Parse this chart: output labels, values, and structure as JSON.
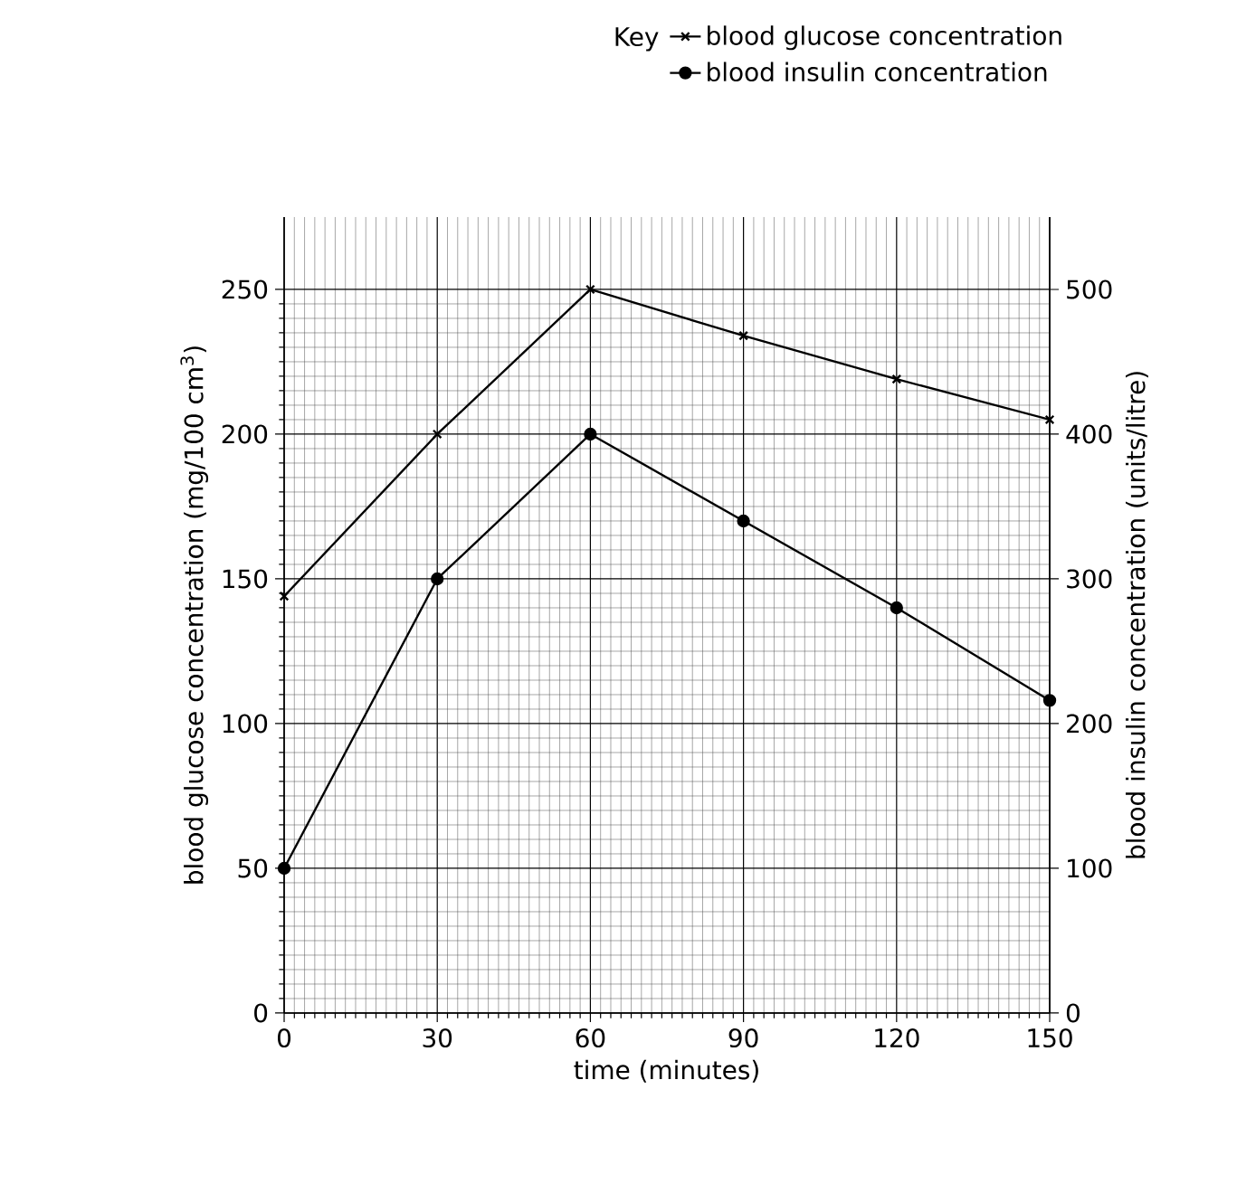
{
  "chart_data": {
    "type": "line",
    "xlabel": "time (minutes)",
    "ylabel": "blood glucose concentration (mg/100 cm$^{3}$)",
    "y2label": "blood insulin concentration (units/litre)",
    "legend_title": "Key",
    "x": [
      0,
      30,
      60,
      90,
      120,
      150
    ],
    "series": [
      {
        "name": "blood glucose concentration",
        "color": "#000000",
        "marker": "cross",
        "values": [
          144,
          200,
          250,
          234,
          219,
          205
        ]
      },
      {
        "name": "blood insulin concentration",
        "color": "#000000",
        "marker": "circle",
        "axis": "y2",
        "values": [
          100,
          300,
          400,
          340,
          280,
          216
        ]
      }
    ],
    "xlim": [
      0,
      150
    ],
    "xticks": [
      0,
      30,
      60,
      90,
      120,
      150
    ],
    "ylim": [
      0,
      275
    ],
    "yticks": [
      0,
      50,
      100,
      150,
      200,
      250
    ],
    "y2lim": [
      0,
      550
    ],
    "y2ticks": [
      0,
      100,
      200,
      300,
      400,
      500
    ],
    "grid": true,
    "legend": "top right",
    "line_style": "solid"
  }
}
